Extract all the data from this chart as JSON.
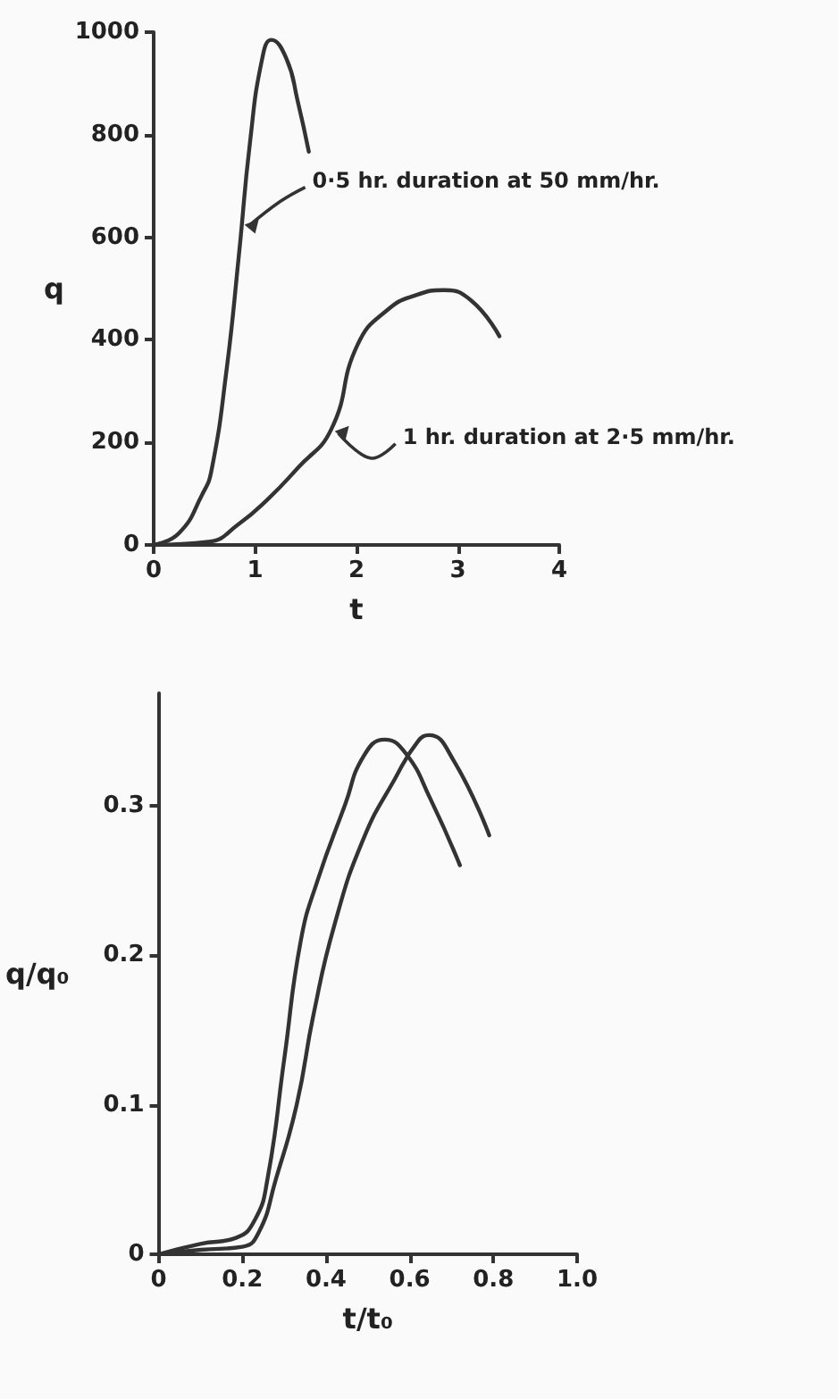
{
  "chart_data": [
    {
      "type": "line",
      "xlabel": "t",
      "ylabel": "q",
      "xlim": [
        0,
        4
      ],
      "xticks": [
        0,
        1,
        2,
        3,
        4
      ],
      "ylim": [
        0,
        1000
      ],
      "yticks": [
        0,
        200,
        400,
        600,
        800,
        1000
      ],
      "grid": false,
      "marker": "none",
      "line_style": "solid",
      "series": [
        {
          "color": "#333333",
          "x": [
            0,
            0.25,
            0.48,
            0.57,
            0.72,
            0.84,
            0.95,
            1.07,
            1.16,
            1.31,
            1.42,
            1.53
          ],
          "values": [
            0,
            23,
            99,
            145,
            343,
            564,
            785,
            948,
            985,
            948,
            866,
            767
          ]
        },
        {
          "color": "#333333",
          "x": [
            0,
            0.54,
            0.84,
            1.13,
            1.42,
            1.75,
            2.01,
            2.31,
            2.6,
            2.86,
            3.13,
            3.41
          ],
          "values": [
            0,
            6,
            41,
            90,
            150,
            225,
            390,
            459,
            488,
            497,
            477,
            407
          ]
        }
      ],
      "annotations": [
        {
          "text": "0·5 hr. duration at 50 mm/hr.",
          "x": 0.86,
          "y": 628
        },
        {
          "text": "1 hr. duration at 2·5 mm/hr.",
          "x": 1.75,
          "y": 225
        }
      ]
    },
    {
      "type": "line",
      "xlabel": "t/t₀",
      "ylabel": "q/q₀",
      "xlim": [
        0,
        1
      ],
      "xticks": [
        0,
        0.2,
        0.4,
        0.6,
        0.8,
        {
          "value": 1,
          "label": "1.0"
        }
      ],
      "ylim": [
        0,
        0.375
      ],
      "yticks": [
        0,
        0.1,
        0.2,
        0.3
      ],
      "grid": false,
      "marker": "none",
      "line_style": "solid",
      "series": [
        {
          "color": "#333333",
          "x": [
            0,
            0.1,
            0.185,
            0.23,
            0.26,
            0.3,
            0.34,
            0.38,
            0.445,
            0.49,
            0.54,
            0.59,
            0.65,
            0.72
          ],
          "values": [
            0,
            0.007,
            0.011,
            0.023,
            0.05,
            0.13,
            0.21,
            0.25,
            0.3,
            0.333,
            0.344,
            0.335,
            0.304,
            0.26
          ]
        },
        {
          "color": "#333333",
          "x": [
            0,
            0.1,
            0.2,
            0.24,
            0.28,
            0.33,
            0.37,
            0.42,
            0.49,
            0.565,
            0.62,
            0.646,
            0.705,
            0.79
          ],
          "values": [
            0,
            0.003,
            0.005,
            0.015,
            0.05,
            0.1,
            0.16,
            0.22,
            0.278,
            0.318,
            0.343,
            0.347,
            0.33,
            0.28
          ]
        }
      ]
    }
  ]
}
